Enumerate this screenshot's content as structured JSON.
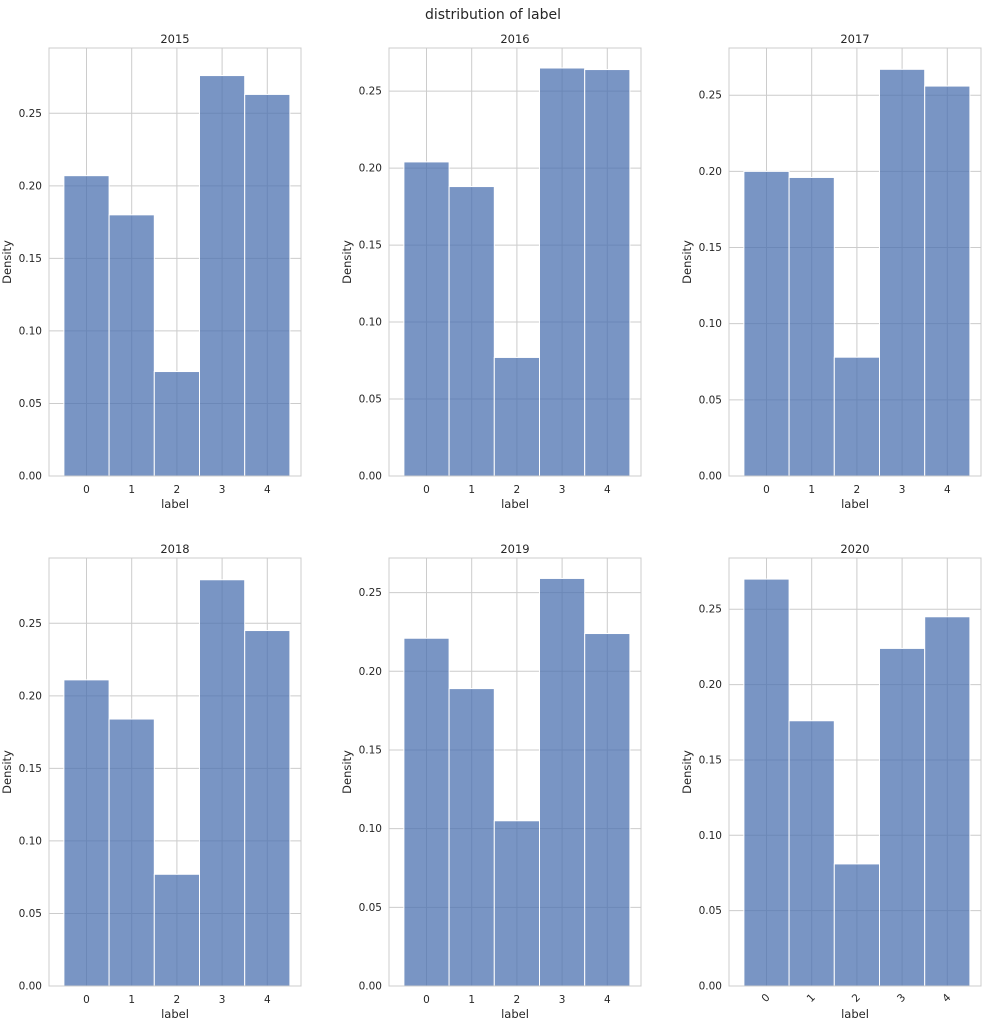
{
  "figure": {
    "title": "distribution of label"
  },
  "colors": {
    "bar_fill": "#4c72b0",
    "bar_stroke": "#ffffff",
    "grid": "#cccccc",
    "spine": "#cccccc",
    "text": "#262626",
    "background": "#ffffff"
  },
  "chart_data": [
    {
      "type": "bar",
      "title": "2015",
      "xlabel": "label",
      "ylabel": "Density",
      "categories": [
        "0",
        "1",
        "2",
        "3",
        "4"
      ],
      "values": [
        0.207,
        0.18,
        0.072,
        0.276,
        0.263
      ],
      "ylim": [
        0,
        0.295
      ],
      "yticks": [
        0.0,
        0.05,
        0.1,
        0.15,
        0.2,
        0.25
      ],
      "ytick_labels": [
        "0.00",
        "0.05",
        "0.10",
        "0.15",
        "0.20",
        "0.25"
      ],
      "xtick_rotation": 0,
      "grid": true
    },
    {
      "type": "bar",
      "title": "2016",
      "xlabel": "label",
      "ylabel": "Density",
      "categories": [
        "0",
        "1",
        "2",
        "3",
        "4"
      ],
      "values": [
        0.204,
        0.188,
        0.077,
        0.265,
        0.264
      ],
      "ylim": [
        0,
        0.278
      ],
      "yticks": [
        0.0,
        0.05,
        0.1,
        0.15,
        0.2,
        0.25
      ],
      "ytick_labels": [
        "0.00",
        "0.05",
        "0.10",
        "0.15",
        "0.20",
        "0.25"
      ],
      "xtick_rotation": 0,
      "grid": true
    },
    {
      "type": "bar",
      "title": "2017",
      "xlabel": "label",
      "ylabel": "Density",
      "categories": [
        "0",
        "1",
        "2",
        "3",
        "4"
      ],
      "values": [
        0.2,
        0.196,
        0.078,
        0.267,
        0.256
      ],
      "ylim": [
        0,
        0.281
      ],
      "yticks": [
        0.0,
        0.05,
        0.1,
        0.15,
        0.2,
        0.25
      ],
      "ytick_labels": [
        "0.00",
        "0.05",
        "0.10",
        "0.15",
        "0.20",
        "0.25"
      ],
      "xtick_rotation": 0,
      "grid": true
    },
    {
      "type": "bar",
      "title": "2018",
      "xlabel": "label",
      "ylabel": "Density",
      "categories": [
        "0",
        "1",
        "2",
        "3",
        "4"
      ],
      "values": [
        0.211,
        0.184,
        0.077,
        0.28,
        0.245
      ],
      "ylim": [
        0,
        0.295
      ],
      "yticks": [
        0.0,
        0.05,
        0.1,
        0.15,
        0.2,
        0.25
      ],
      "ytick_labels": [
        "0.00",
        "0.05",
        "0.10",
        "0.15",
        "0.20",
        "0.25"
      ],
      "xtick_rotation": 0,
      "grid": true
    },
    {
      "type": "bar",
      "title": "2019",
      "xlabel": "label",
      "ylabel": "Density",
      "categories": [
        "0",
        "1",
        "2",
        "3",
        "4"
      ],
      "values": [
        0.221,
        0.189,
        0.105,
        0.259,
        0.224
      ],
      "ylim": [
        0,
        0.272
      ],
      "yticks": [
        0.0,
        0.05,
        0.1,
        0.15,
        0.2,
        0.25
      ],
      "ytick_labels": [
        "0.00",
        "0.05",
        "0.10",
        "0.15",
        "0.20",
        "0.25"
      ],
      "xtick_rotation": 0,
      "grid": true
    },
    {
      "type": "bar",
      "title": "2020",
      "xlabel": "label",
      "ylabel": "Density",
      "categories": [
        "0",
        "1",
        "2",
        "3",
        "4"
      ],
      "values": [
        0.27,
        0.176,
        0.081,
        0.224,
        0.245
      ],
      "ylim": [
        0,
        0.284
      ],
      "yticks": [
        0.0,
        0.05,
        0.1,
        0.15,
        0.2,
        0.25
      ],
      "ytick_labels": [
        "0.00",
        "0.05",
        "0.10",
        "0.15",
        "0.20",
        "0.25"
      ],
      "xtick_rotation": -45,
      "grid": true
    }
  ]
}
